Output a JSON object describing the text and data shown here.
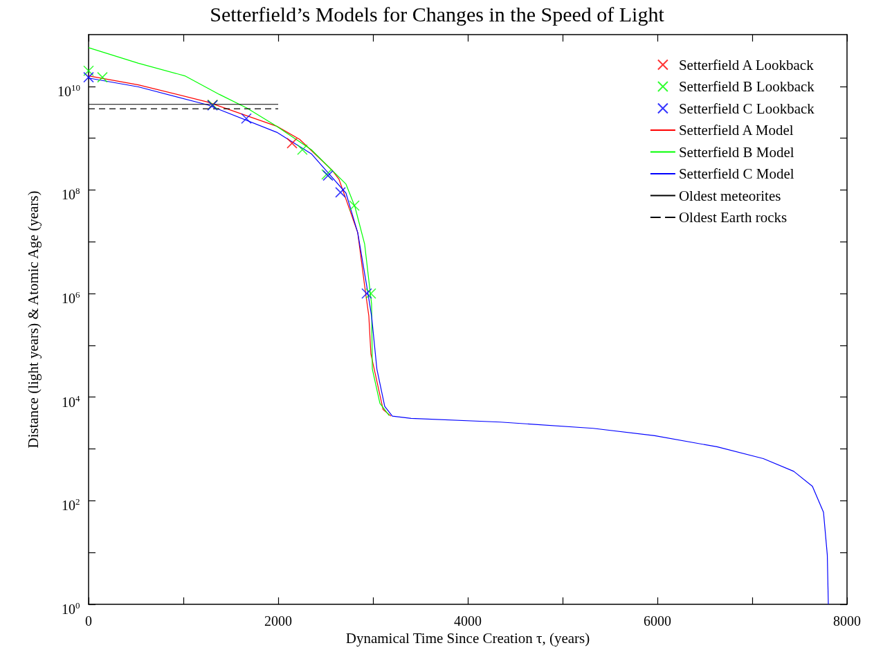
{
  "chart_data": {
    "type": "line",
    "title": "Setterfield’s Models for Changes in the Speed of Light",
    "xlabel": "Dynamical Time Since Creation τ, (years)",
    "ylabel": "Distance (light years) & Atomic Age (years)",
    "log": "y",
    "grid": false,
    "legend": "top right",
    "xlim": [
      0,
      8000
    ],
    "xticks": [
      0,
      {
        "value": 1000,
        "label": null
      },
      2000,
      {
        "value": 3000,
        "label": null
      },
      4000,
      {
        "value": 5000,
        "label": null
      },
      6000,
      {
        "value": 7000,
        "label": null
      },
      8000
    ],
    "ylim": [
      1,
      100000000000
    ],
    "yticks": [
      {
        "value": 1,
        "label": "10$^{0}$"
      },
      {
        "value": 10,
        "label": null
      },
      {
        "value": 100,
        "label": "10$^{2}$"
      },
      {
        "value": 1000,
        "label": null
      },
      {
        "value": 10000,
        "label": "10$^{4}$"
      },
      {
        "value": 100000,
        "label": null
      },
      {
        "value": 1000000,
        "label": "10$^{6}$"
      },
      {
        "value": 10000000,
        "label": null
      },
      {
        "value": 100000000,
        "label": "10$^{8}$"
      },
      {
        "value": 1000000000,
        "label": null
      },
      {
        "value": 10000000000,
        "label": "10$^{10}$"
      }
    ],
    "series": [
      {
        "name": "Setterfield A Lookback",
        "type": "scatter",
        "marker": "cross",
        "color": "#ff0000",
        "x": [
          1307,
          2146
        ],
        "values": [
          4400000000,
          800000000
        ]
      },
      {
        "name": "Setterfield B Lookback",
        "type": "scatter",
        "marker": "cross",
        "color": "#00ff00",
        "x": [
          0,
          146,
          1310,
          2255,
          2511,
          2803,
          2978
        ],
        "values": [
          20000000000,
          15000000000,
          4400000000,
          600000000,
          200000000,
          50000000,
          1000000
        ]
      },
      {
        "name": "Setterfield C Lookback",
        "type": "scatter",
        "marker": "cross",
        "color": "#0000ff",
        "x": [
          0,
          1307,
          1664,
          2526,
          2657,
          2934
        ],
        "values": [
          15000000000,
          4300000000,
          2400000000,
          190000000,
          90000000,
          1000000
        ]
      },
      {
        "name": "Setterfield A Model",
        "marker": "none",
        "line_style": "solid",
        "color": "#ff0000",
        "x": [
          0,
          526,
          1255,
          1985,
          2226,
          2569,
          2642,
          2839,
          2912,
          2956,
          2978,
          3106,
          3190
        ],
        "values": [
          16000000000,
          10700000000,
          5000000000,
          1700000000,
          950000000,
          240000000,
          160000000,
          15000000,
          1400000,
          370000,
          68000,
          5800,
          4300
        ]
      },
      {
        "name": "Setterfield B Model",
        "marker": "none",
        "line_style": "solid",
        "color": "#00ff00",
        "x": [
          0,
          526,
          1015,
          1380,
          1672,
          1985,
          2350,
          2715,
          2810,
          2912,
          2985,
          2993,
          3073,
          3171
        ],
        "values": [
          56000000000,
          28000000000,
          16000000000,
          7000000000,
          3800000000,
          1700000000,
          600000000,
          130000000,
          47000000,
          9000000,
          630000,
          35000,
          7600,
          4400
        ]
      },
      {
        "name": "Setterfield C Model",
        "marker": "none",
        "line_style": "solid",
        "color": "#0000ff",
        "x": [
          0,
          526,
          1255,
          1985,
          2350,
          2715,
          2839,
          2934,
          2985,
          3041,
          3124,
          3204,
          3401,
          4343,
          5321,
          5971,
          6628,
          7117,
          7438,
          7635,
          7752,
          7792,
          7803
        ],
        "values": [
          14500000000,
          9800000000,
          4400000000,
          1300000000,
          500000000,
          87000000,
          15000000,
          1400000,
          370000,
          35000,
          6600,
          4300,
          3900,
          3300,
          2500,
          1800,
          1100,
          650,
          370,
          190,
          60,
          9,
          1
        ]
      },
      {
        "name": "Oldest meteorites",
        "marker": "none",
        "line_style": "solid",
        "color": "#000000",
        "x": [
          0,
          2000
        ],
        "values": [
          4500000000,
          4500000000
        ]
      },
      {
        "name": "Oldest Earth rocks",
        "marker": "none",
        "line_style": "dashed",
        "color": "#000000",
        "x": [
          0,
          2000
        ],
        "values": [
          3700000000,
          3700000000
        ]
      }
    ]
  }
}
